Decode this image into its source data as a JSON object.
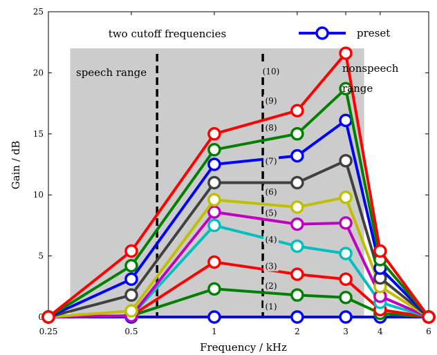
{
  "chart_data": {
    "type": "line",
    "xlabel": "Frequency / kHz",
    "ylabel": "Gain / dB",
    "x": [
      0.25,
      0.5,
      1,
      2,
      3,
      4,
      6
    ],
    "xticks": [
      "0.25",
      "0.5",
      "1",
      "2",
      "3",
      "4",
      "6"
    ],
    "ylim": [
      0,
      25
    ],
    "yticks": [
      "0",
      "5",
      "10",
      "15",
      "20",
      "25"
    ],
    "grid": false,
    "legend": {
      "entries": [
        "preset"
      ],
      "position": "top-right"
    },
    "shaded_region": {
      "x_range": [
        0.3,
        3.5
      ],
      "y_range": [
        0,
        22
      ],
      "color": "#cccccc"
    },
    "cutoff_lines": [
      0.62,
      1.5
    ],
    "annotations": {
      "cutoff": "two cutoff frequencies",
      "speech": "speech range",
      "nonspeech_1": "nonspeech",
      "nonspeech_2": "range"
    },
    "series": [
      {
        "label": "(1)",
        "color": "#0000ff",
        "values": [
          0,
          0,
          0,
          0,
          0,
          0,
          0
        ]
      },
      {
        "label": "(2)",
        "color": "#008000",
        "values": [
          0,
          0.1,
          2.3,
          1.8,
          1.6,
          0.3,
          0
        ]
      },
      {
        "label": "(3)",
        "color": "#ff0000",
        "values": [
          0,
          0.1,
          4.5,
          3.5,
          3.1,
          0.6,
          0
        ]
      },
      {
        "label": "(4)",
        "color": "#00bfbf",
        "values": [
          0,
          0.1,
          7.5,
          5.8,
          5.2,
          1.2,
          0
        ]
      },
      {
        "label": "(5)",
        "color": "#bf00bf",
        "values": [
          0,
          0.1,
          8.6,
          7.6,
          7.7,
          1.7,
          0
        ]
      },
      {
        "label": "(6)",
        "color": "#bfbf00",
        "values": [
          0,
          0.5,
          9.6,
          9.0,
          9.8,
          2.5,
          0
        ]
      },
      {
        "label": "(7)",
        "color": "#404040",
        "values": [
          0,
          1.8,
          11.0,
          11.0,
          12.8,
          3.2,
          0
        ]
      },
      {
        "label": "(8)",
        "color": "#0000ff",
        "values": [
          0,
          3.1,
          12.5,
          13.2,
          16.1,
          4.0,
          0
        ]
      },
      {
        "label": "(9)",
        "color": "#008000",
        "values": [
          0,
          4.2,
          13.7,
          15.0,
          18.7,
          4.7,
          0
        ]
      },
      {
        "label": "(10)",
        "color": "#ff0000",
        "values": [
          0,
          5.4,
          15.0,
          16.9,
          21.6,
          5.4,
          0
        ]
      }
    ]
  }
}
